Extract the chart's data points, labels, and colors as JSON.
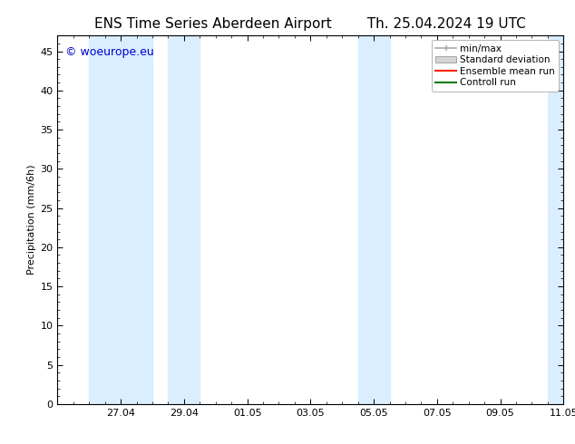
{
  "title_left": "ENS Time Series Aberdeen Airport",
  "title_right": "Th. 25.04.2024 19 UTC",
  "ylabel": "Precipitation (mm/6h)",
  "ylim": [
    0,
    47
  ],
  "yticks": [
    0,
    5,
    10,
    15,
    20,
    25,
    30,
    35,
    40,
    45
  ],
  "xlim": [
    0,
    16
  ],
  "xtick_labels": [
    "27.04",
    "29.04",
    "01.05",
    "03.05",
    "05.05",
    "07.05",
    "09.05",
    "11.05"
  ],
  "xtick_positions": [
    2,
    4,
    6,
    8,
    10,
    12,
    14,
    16
  ],
  "shaded_bands": [
    {
      "x_start": 1.0,
      "x_end": 3.0
    },
    {
      "x_start": 3.5,
      "x_end": 4.5
    },
    {
      "x_start": 9.5,
      "x_end": 10.5
    },
    {
      "x_start": 15.5,
      "x_end": 16.0
    }
  ],
  "band_color": "#daeeff",
  "background_color": "#ffffff",
  "plot_bg_color": "#ffffff",
  "watermark_text": "© woeurope.eu",
  "watermark_color": "#0000cc",
  "watermark_fontsize": 9,
  "legend_items": [
    {
      "label": "min/max",
      "color": "#aaaaaa",
      "type": "errorbar"
    },
    {
      "label": "Standard deviation",
      "color": "#cccccc",
      "type": "fill"
    },
    {
      "label": "Ensemble mean run",
      "color": "#ff0000",
      "type": "line"
    },
    {
      "label": "Controll run",
      "color": "#006600",
      "type": "line"
    }
  ],
  "title_fontsize": 11,
  "axis_label_fontsize": 8,
  "tick_fontsize": 8,
  "legend_fontsize": 7.5,
  "minor_tick_count": 4
}
